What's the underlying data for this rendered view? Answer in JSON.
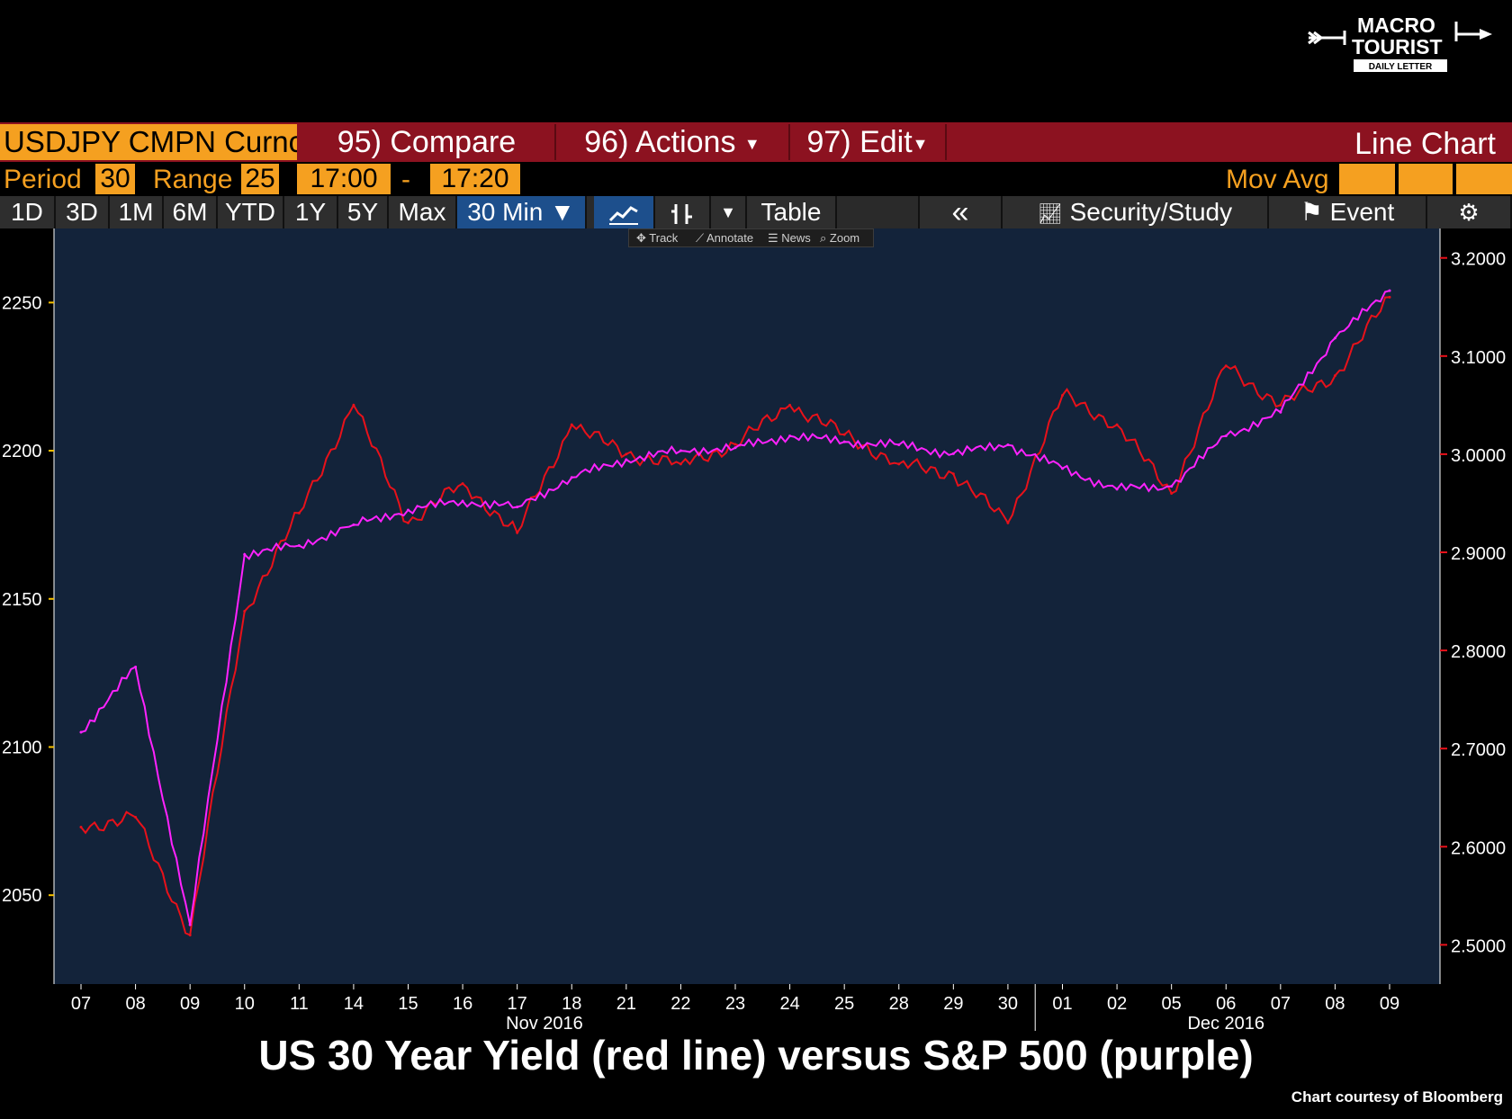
{
  "logo": {
    "line1": "MACRO",
    "line2": "TOURIST",
    "line3": "DAILY LETTER"
  },
  "toolbar": {
    "security": "USDJPY CMPN Curnc",
    "compare": "95) Compare",
    "actions": "96) Actions",
    "edit": "97) Edit",
    "chart_type": "Line Chart",
    "period_label": "Period",
    "period_value": "30",
    "range_label": "Range",
    "range_value": "25",
    "time_start": "17:00",
    "time_dash": "-",
    "time_end": "17:20",
    "mov_avg": "Mov Avg"
  },
  "tabs": [
    "1D",
    "3D",
    "1M",
    "6M",
    "YTD",
    "1Y",
    "5Y",
    "Max",
    "30 Min ▼"
  ],
  "tools": {
    "table": "Table",
    "back": "«",
    "security_study": "Security/Study",
    "event": "Event",
    "settings": "⚙"
  },
  "subtools": {
    "track": "Track",
    "annotate": "Annotate",
    "news": "News",
    "zoom": "Zoom"
  },
  "colors": {
    "background": "#000000",
    "plot_bg": "#13233a",
    "red": "#e8111a",
    "purple": "#ff22ff",
    "orange": "#f5a020",
    "toolbar_red": "#8c1220"
  },
  "chart_data": {
    "type": "line",
    "x": [
      "07",
      "08",
      "09",
      "10",
      "11",
      "14",
      "15",
      "16",
      "17",
      "18",
      "21",
      "22",
      "23",
      "24",
      "25",
      "28",
      "29",
      "30",
      "01",
      "02",
      "05",
      "06",
      "07",
      "08",
      "09"
    ],
    "month_labels": [
      "Nov 2016",
      "Dec 2016"
    ],
    "left_axis": {
      "ticks": [
        "2050",
        "2100",
        "2150",
        "2200",
        "2250"
      ],
      "range": [
        2020,
        2275
      ]
    },
    "right_axis": {
      "ticks": [
        "2.5000",
        "2.6000",
        "2.7000",
        "2.8000",
        "2.9000",
        "3.0000",
        "3.1000",
        "3.2000"
      ],
      "range": [
        2.46,
        3.23
      ]
    },
    "series": [
      {
        "axis": "right",
        "color": "#e8111a",
        "values": [
          2.62,
          2.63,
          2.51,
          2.84,
          2.94,
          3.05,
          2.93,
          2.97,
          2.92,
          3.03,
          3.0,
          2.99,
          3.01,
          3.05,
          3.02,
          2.99,
          2.98,
          2.93,
          3.06,
          3.03,
          2.96,
          3.09,
          3.05,
          3.08,
          3.16
        ]
      },
      {
        "axis": "left",
        "color": "#ff22ff",
        "values": [
          2105,
          2127,
          2040,
          2165,
          2168,
          2175,
          2180,
          2183,
          2181,
          2191,
          2197,
          2200,
          2201,
          2205,
          2203,
          2202,
          2199,
          2202,
          2194,
          2187,
          2188,
          2205,
          2213,
          2238,
          2254
        ]
      }
    ],
    "caption": "US 30 Year Yield (red line) versus S&P 500 (purple)",
    "credit": "Chart courtesy of Bloomberg"
  }
}
